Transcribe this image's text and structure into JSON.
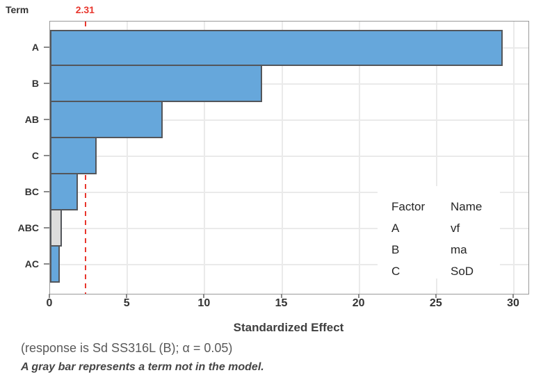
{
  "chart_data": {
    "type": "bar",
    "orientation": "horizontal",
    "title": "",
    "ylabel": "Term",
    "xlabel": "Standardized Effect",
    "subtitle": "(response is Sd SS316L (B); α = 0.05)",
    "footnote": "A gray bar represents a term not in the model.",
    "categories": [
      "A",
      "B",
      "AB",
      "C",
      "BC",
      "ABC",
      "AC"
    ],
    "values": [
      29.3,
      13.7,
      7.3,
      3.0,
      1.8,
      0.75,
      0.65
    ],
    "in_model": [
      true,
      true,
      true,
      true,
      true,
      false,
      true
    ],
    "reference_line": {
      "value": 2.31,
      "label": "2.31"
    },
    "xticks": [
      0,
      5,
      10,
      15,
      20,
      25,
      30
    ],
    "xlim": [
      0,
      30.9
    ],
    "grid": true,
    "legend": {
      "position": "inside-right",
      "headers": [
        "Factor",
        "Name"
      ],
      "rows": [
        [
          "A",
          "vf"
        ],
        [
          "B",
          "ma"
        ],
        [
          "C",
          "SoD"
        ]
      ]
    },
    "colors": {
      "bar_fill": "#66A7DB",
      "bar_border": "#53565B",
      "excluded_fill": "#DCDCDC",
      "reference": "#E8362D",
      "grid": "#EAEAEA",
      "frame": "#999999",
      "text": "#333333"
    }
  }
}
